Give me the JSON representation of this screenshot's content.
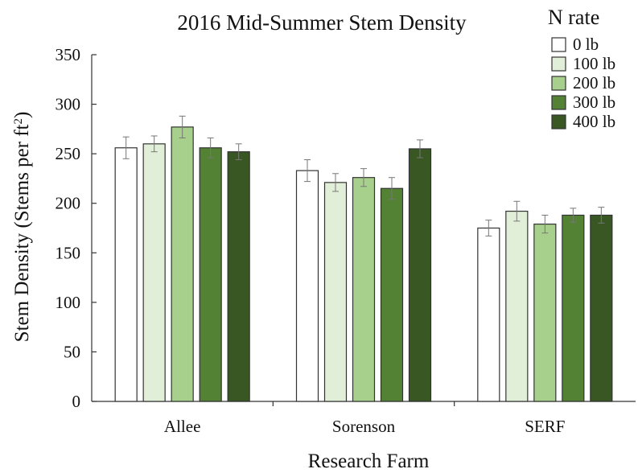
{
  "chart_data": {
    "type": "bar",
    "title": "2016 Mid-Summer Stem Density",
    "xlabel": "Research Farm",
    "ylabel": "Stem Density (Stems per ft²)",
    "ylabel_main": "Stem Density (Stems per ft",
    "ylabel_sup": "2",
    "ylabel_end": ")",
    "ylim": [
      0,
      350
    ],
    "yticks": [
      "0",
      "50",
      "100",
      "150",
      "200",
      "250",
      "300",
      "350"
    ],
    "categories": [
      "Allee",
      "Sorenson",
      "SERF"
    ],
    "legend_title": "N rate",
    "legend_position": "top-right",
    "grid": false,
    "series": [
      {
        "name": "0 lb",
        "color": "#ffffff",
        "values": [
          256,
          233,
          175
        ],
        "errors": [
          11,
          11,
          8
        ]
      },
      {
        "name": "100 lb",
        "color": "#e2efd8",
        "values": [
          260,
          221,
          192
        ],
        "errors": [
          8,
          9,
          10
        ]
      },
      {
        "name": "200 lb",
        "color": "#a8d08d",
        "values": [
          277,
          226,
          179
        ],
        "errors": [
          11,
          9,
          9
        ]
      },
      {
        "name": "300 lb",
        "color": "#548235",
        "values": [
          256,
          215,
          188
        ],
        "errors": [
          10,
          11,
          7
        ]
      },
      {
        "name": "400 lb",
        "color": "#385723",
        "values": [
          252,
          255,
          188
        ],
        "errors": [
          8,
          9,
          8
        ]
      }
    ]
  }
}
